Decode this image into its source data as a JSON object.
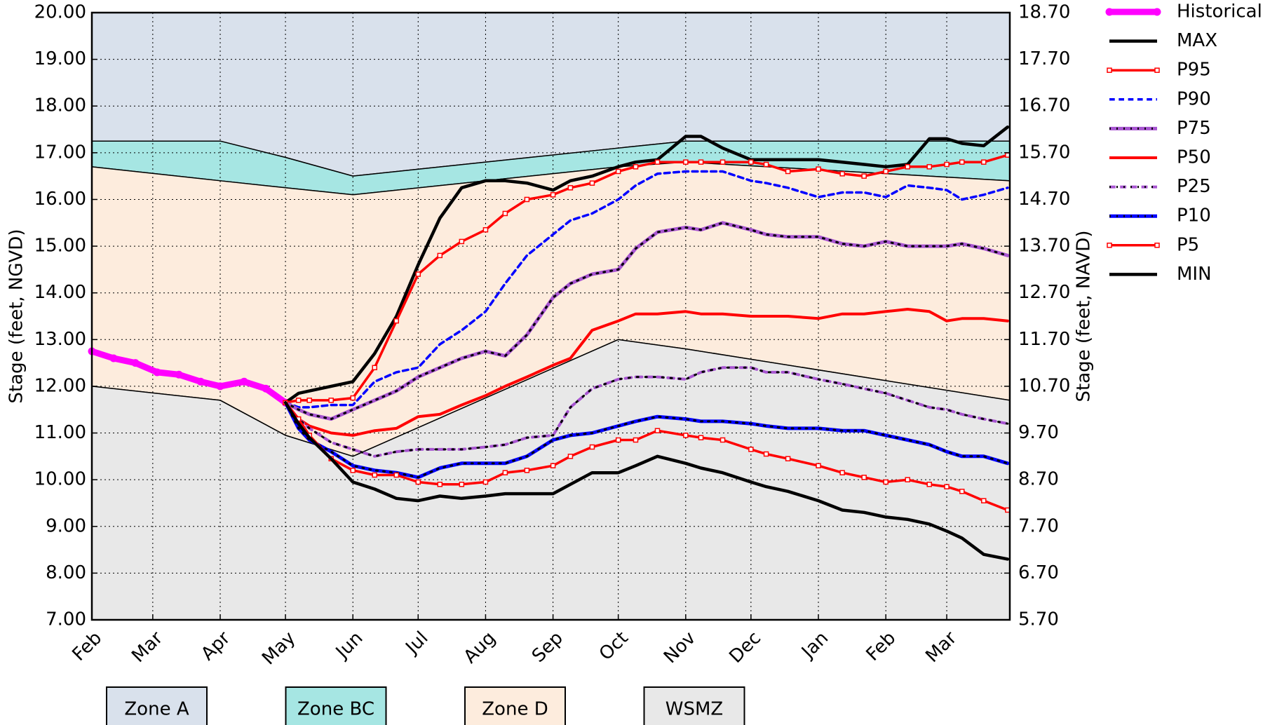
{
  "chart_data": {
    "type": "line",
    "y_label": "Stage (feet, NGVD)",
    "y2_label": "Stage (feet, NAVD)",
    "grid": true,
    "legend": "outside-right",
    "xlim": [
      0,
      422
    ],
    "xticks": [
      {
        "value": 0,
        "label": "Feb"
      },
      {
        "value": 28,
        "label": "Mar"
      },
      {
        "value": 59,
        "label": "Apr"
      },
      {
        "value": 89,
        "label": "May"
      },
      {
        "value": 120,
        "label": "Jun"
      },
      {
        "value": 150,
        "label": "Jul"
      },
      {
        "value": 181,
        "label": "Aug"
      },
      {
        "value": 212,
        "label": "Sep"
      },
      {
        "value": 242,
        "label": "Oct"
      },
      {
        "value": 273,
        "label": "Nov"
      },
      {
        "value": 303,
        "label": "Dec"
      },
      {
        "value": 334,
        "label": "Jan"
      },
      {
        "value": 365,
        "label": "Feb"
      },
      {
        "value": 393,
        "label": "Mar"
      }
    ],
    "ylim": [
      7,
      20
    ],
    "yticks": [
      {
        "value": 7,
        "label": "7.00"
      },
      {
        "value": 8,
        "label": "8.00"
      },
      {
        "value": 9,
        "label": "9.00"
      },
      {
        "value": 10,
        "label": "10.00"
      },
      {
        "value": 11,
        "label": "11.00"
      },
      {
        "value": 12,
        "label": "12.00"
      },
      {
        "value": 13,
        "label": "13.00"
      },
      {
        "value": 14,
        "label": "14.00"
      },
      {
        "value": 15,
        "label": "15.00"
      },
      {
        "value": 16,
        "label": "16.00"
      },
      {
        "value": 17,
        "label": "17.00"
      },
      {
        "value": 18,
        "label": "18.00"
      },
      {
        "value": 19,
        "label": "19.00"
      },
      {
        "value": 20,
        "label": "20.00"
      }
    ],
    "y2lim": [
      5.7,
      18.7
    ],
    "y2ticks": [
      {
        "value": 5.7,
        "label": "5.70"
      },
      {
        "value": 6.7,
        "label": "6.70"
      },
      {
        "value": 7.7,
        "label": "7.70"
      },
      {
        "value": 8.7,
        "label": "8.70"
      },
      {
        "value": 9.7,
        "label": "9.70"
      },
      {
        "value": 10.7,
        "label": "10.70"
      },
      {
        "value": 11.7,
        "label": "11.70"
      },
      {
        "value": 12.7,
        "label": "12.70"
      },
      {
        "value": 13.7,
        "label": "13.70"
      },
      {
        "value": 14.7,
        "label": "14.70"
      },
      {
        "value": 15.7,
        "label": "15.70"
      },
      {
        "value": 16.7,
        "label": "16.70"
      },
      {
        "value": 17.7,
        "label": "17.70"
      },
      {
        "value": 18.7,
        "label": "18.70"
      }
    ],
    "zones": [
      {
        "name": "Zone A",
        "color": "#d9e1ec",
        "x": [
          0,
          59,
          89,
          120,
          242,
          273,
          422
        ],
        "upper": [
          20,
          20,
          20,
          20,
          20,
          20,
          20
        ],
        "lower": [
          17.25,
          17.25,
          16.9,
          16.5,
          17.1,
          17.25,
          17.25
        ]
      },
      {
        "name": "Zone BC",
        "color": "#a6e6e3",
        "x": [
          0,
          59,
          89,
          120,
          242,
          273,
          422
        ],
        "upper": [
          17.25,
          17.25,
          16.9,
          16.5,
          17.1,
          17.25,
          17.25
        ],
        "lower": [
          16.7,
          16.4,
          16.25,
          16.1,
          16.7,
          16.8,
          16.4
        ]
      },
      {
        "name": "Zone D",
        "color": "#fdecdd",
        "x": [
          0,
          59,
          89,
          120,
          242,
          273,
          422
        ],
        "upper": [
          16.7,
          16.4,
          16.25,
          16.1,
          16.7,
          16.8,
          16.4
        ],
        "lower": [
          12.0,
          11.7,
          10.95,
          10.5,
          13.0,
          12.8,
          11.7
        ]
      },
      {
        "name": "WSMZ",
        "color": "#e8e8e8",
        "x": [
          0,
          59,
          89,
          120,
          242,
          273,
          422
        ],
        "upper": [
          12.0,
          11.7,
          10.95,
          10.5,
          13.0,
          12.8,
          11.7
        ],
        "lower": [
          7,
          7,
          7,
          7,
          7,
          7,
          7
        ]
      }
    ],
    "x": [
      0,
      10,
      20,
      30,
      40,
      50,
      59,
      70,
      80,
      89,
      95,
      100,
      110,
      120,
      130,
      140,
      150,
      160,
      170,
      181,
      190,
      200,
      212,
      220,
      230,
      242,
      250,
      260,
      273,
      280,
      290,
      303,
      310,
      320,
      334,
      345,
      355,
      365,
      375,
      385,
      393,
      400,
      410,
      421
    ],
    "series": [
      {
        "name": "Historical",
        "color": "#ff00ff",
        "width": 9,
        "style": "solid",
        "marker": "circle",
        "values": [
          12.75,
          12.6,
          12.5,
          12.3,
          12.25,
          12.1,
          12.0,
          12.1,
          11.95,
          11.65,
          null,
          null,
          null,
          null,
          null,
          null,
          null,
          null,
          null,
          null,
          null,
          null,
          null,
          null,
          null,
          null,
          null,
          null,
          null,
          null,
          null,
          null,
          null,
          null,
          null,
          null,
          null,
          null,
          null,
          null,
          null,
          null,
          null,
          null
        ]
      },
      {
        "name": "MAX",
        "color": "#000000",
        "width": 4.5,
        "style": "solid",
        "values": [
          null,
          null,
          null,
          null,
          null,
          null,
          null,
          null,
          null,
          11.65,
          11.85,
          11.9,
          12.0,
          12.1,
          12.7,
          13.5,
          14.6,
          15.6,
          16.25,
          16.4,
          16.4,
          16.35,
          16.2,
          16.4,
          16.5,
          16.7,
          16.8,
          16.85,
          17.35,
          17.35,
          17.1,
          16.85,
          16.85,
          16.85,
          16.85,
          16.8,
          16.75,
          16.7,
          16.75,
          17.3,
          17.3,
          17.2,
          17.15,
          17.55
        ]
      },
      {
        "name": "P95",
        "color": "#ff0000",
        "width": 3.5,
        "style": "solid",
        "marker": "square",
        "values": [
          null,
          null,
          null,
          null,
          null,
          null,
          null,
          null,
          null,
          11.65,
          11.7,
          11.7,
          11.7,
          11.75,
          12.4,
          13.4,
          14.4,
          14.8,
          15.1,
          15.35,
          15.7,
          16.0,
          16.1,
          16.25,
          16.35,
          16.6,
          16.7,
          16.8,
          16.8,
          16.8,
          16.8,
          16.8,
          16.75,
          16.6,
          16.65,
          16.55,
          16.5,
          16.6,
          16.7,
          16.7,
          16.75,
          16.8,
          16.8,
          16.95
        ]
      },
      {
        "name": "P90",
        "color": "#0000ff",
        "width": 3.5,
        "style": "dashed",
        "values": [
          null,
          null,
          null,
          null,
          null,
          null,
          null,
          null,
          null,
          11.65,
          11.55,
          11.55,
          11.6,
          11.6,
          12.1,
          12.3,
          12.4,
          12.9,
          13.2,
          13.6,
          14.2,
          14.8,
          15.25,
          15.55,
          15.7,
          16.0,
          16.3,
          16.55,
          16.6,
          16.6,
          16.6,
          16.4,
          16.35,
          16.25,
          16.05,
          16.15,
          16.15,
          16.05,
          16.3,
          16.25,
          16.2,
          16.0,
          16.1,
          16.25
        ]
      },
      {
        "name": "P75",
        "color": "#a855d1",
        "width": 5,
        "style": "solid",
        "accent": "#000000",
        "values": [
          null,
          null,
          null,
          null,
          null,
          null,
          null,
          null,
          null,
          11.65,
          11.5,
          11.4,
          11.3,
          11.5,
          11.7,
          11.9,
          12.2,
          12.4,
          12.6,
          12.75,
          12.65,
          13.1,
          13.9,
          14.2,
          14.4,
          14.5,
          14.95,
          15.3,
          15.4,
          15.35,
          15.5,
          15.35,
          15.25,
          15.2,
          15.2,
          15.05,
          15.0,
          15.1,
          15.0,
          15.0,
          15.0,
          15.05,
          14.95,
          14.8
        ]
      },
      {
        "name": "P50",
        "color": "#ff0000",
        "width": 4,
        "style": "solid",
        "values": [
          null,
          null,
          null,
          null,
          null,
          null,
          null,
          null,
          null,
          11.65,
          11.3,
          11.15,
          11.0,
          10.95,
          11.05,
          11.1,
          11.35,
          11.4,
          11.6,
          11.8,
          12.0,
          12.2,
          12.45,
          12.6,
          13.2,
          13.4,
          13.55,
          13.55,
          13.6,
          13.55,
          13.55,
          13.5,
          13.5,
          13.5,
          13.45,
          13.55,
          13.55,
          13.6,
          13.65,
          13.6,
          13.4,
          13.45,
          13.45,
          13.4
        ]
      },
      {
        "name": "P25",
        "color": "#a855d1",
        "width": 4,
        "style": "dashed",
        "accent": "#000000",
        "values": [
          null,
          null,
          null,
          null,
          null,
          null,
          null,
          null,
          null,
          11.65,
          11.3,
          11.1,
          10.8,
          10.65,
          10.5,
          10.6,
          10.65,
          10.65,
          10.65,
          10.7,
          10.75,
          10.9,
          10.95,
          11.55,
          11.95,
          12.15,
          12.2,
          12.2,
          12.15,
          12.3,
          12.4,
          12.4,
          12.3,
          12.3,
          12.15,
          12.05,
          11.95,
          11.85,
          11.7,
          11.55,
          11.5,
          11.4,
          11.3,
          11.2
        ]
      },
      {
        "name": "P10",
        "color": "#0000ff",
        "width": 5,
        "style": "solid",
        "accent": "#000000",
        "values": [
          null,
          null,
          null,
          null,
          null,
          null,
          null,
          null,
          null,
          11.65,
          11.1,
          10.85,
          10.6,
          10.3,
          10.2,
          10.15,
          10.05,
          10.25,
          10.35,
          10.35,
          10.35,
          10.5,
          10.85,
          10.95,
          11.0,
          11.15,
          11.25,
          11.35,
          11.3,
          11.25,
          11.25,
          11.2,
          11.15,
          11.1,
          11.1,
          11.05,
          11.05,
          10.95,
          10.85,
          10.75,
          10.6,
          10.5,
          10.5,
          10.35
        ]
      },
      {
        "name": "P5",
        "color": "#ff0000",
        "width": 3.5,
        "style": "solid",
        "marker": "square",
        "values": [
          null,
          null,
          null,
          null,
          null,
          null,
          null,
          null,
          null,
          11.65,
          11.3,
          10.95,
          10.45,
          10.2,
          10.1,
          10.1,
          9.95,
          9.9,
          9.9,
          9.95,
          10.15,
          10.2,
          10.3,
          10.5,
          10.7,
          10.85,
          10.85,
          11.05,
          10.95,
          10.9,
          10.85,
          10.65,
          10.55,
          10.45,
          10.3,
          10.15,
          10.05,
          9.95,
          10.0,
          9.9,
          9.85,
          9.75,
          9.55,
          9.35
        ]
      },
      {
        "name": "MIN",
        "color": "#000000",
        "width": 4.5,
        "style": "solid",
        "values": [
          null,
          null,
          null,
          null,
          null,
          null,
          null,
          null,
          null,
          11.65,
          11.2,
          10.9,
          10.45,
          9.95,
          9.8,
          9.6,
          9.55,
          9.65,
          9.6,
          9.65,
          9.7,
          9.7,
          9.7,
          9.9,
          10.15,
          10.15,
          10.3,
          10.5,
          10.35,
          10.25,
          10.15,
          9.95,
          9.85,
          9.75,
          9.55,
          9.35,
          9.3,
          9.2,
          9.15,
          9.05,
          8.9,
          8.75,
          8.4,
          8.3
        ]
      }
    ]
  }
}
